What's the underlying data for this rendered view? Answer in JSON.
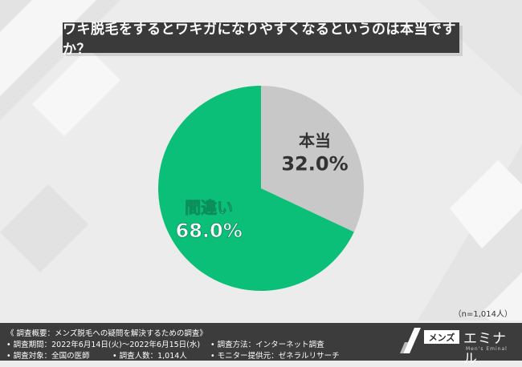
{
  "title": "ワキ脱毛をするとワキガになりやすくなるというのは本当ですか？",
  "sample_size": "（n=1,014人）",
  "colors": {
    "true_slice": "#c8c8c8",
    "false_slice": "#0bbf79",
    "background": "#ededed",
    "footer": "#3c3c3c"
  },
  "chart_data": {
    "type": "pie",
    "title": "ワキ脱毛をするとワキガになりやすくなるというのは本当ですか？",
    "slices": [
      {
        "label": "本当",
        "value": 32.0,
        "value_label": "32.0%"
      },
      {
        "label": "間違い",
        "value": 68.0,
        "value_label": "68.0%"
      }
    ]
  },
  "footer": {
    "summary": "《 調査概要：メンズ脱毛への疑問を解決するための調査》",
    "period": "• 調査期間：2022年6月14日(火)〜2022年6月15日(水)",
    "target": "• 調査対象：全国の医師",
    "count": "• 調査人数：1,014人",
    "method": "• 調査方法：インターネット調査",
    "monitor": "• モニター提供元：ゼネラルリサーチ"
  },
  "logo": {
    "box_text": "メンズ",
    "main_text": "エミナル",
    "sub_text": "Men's Eminal"
  }
}
